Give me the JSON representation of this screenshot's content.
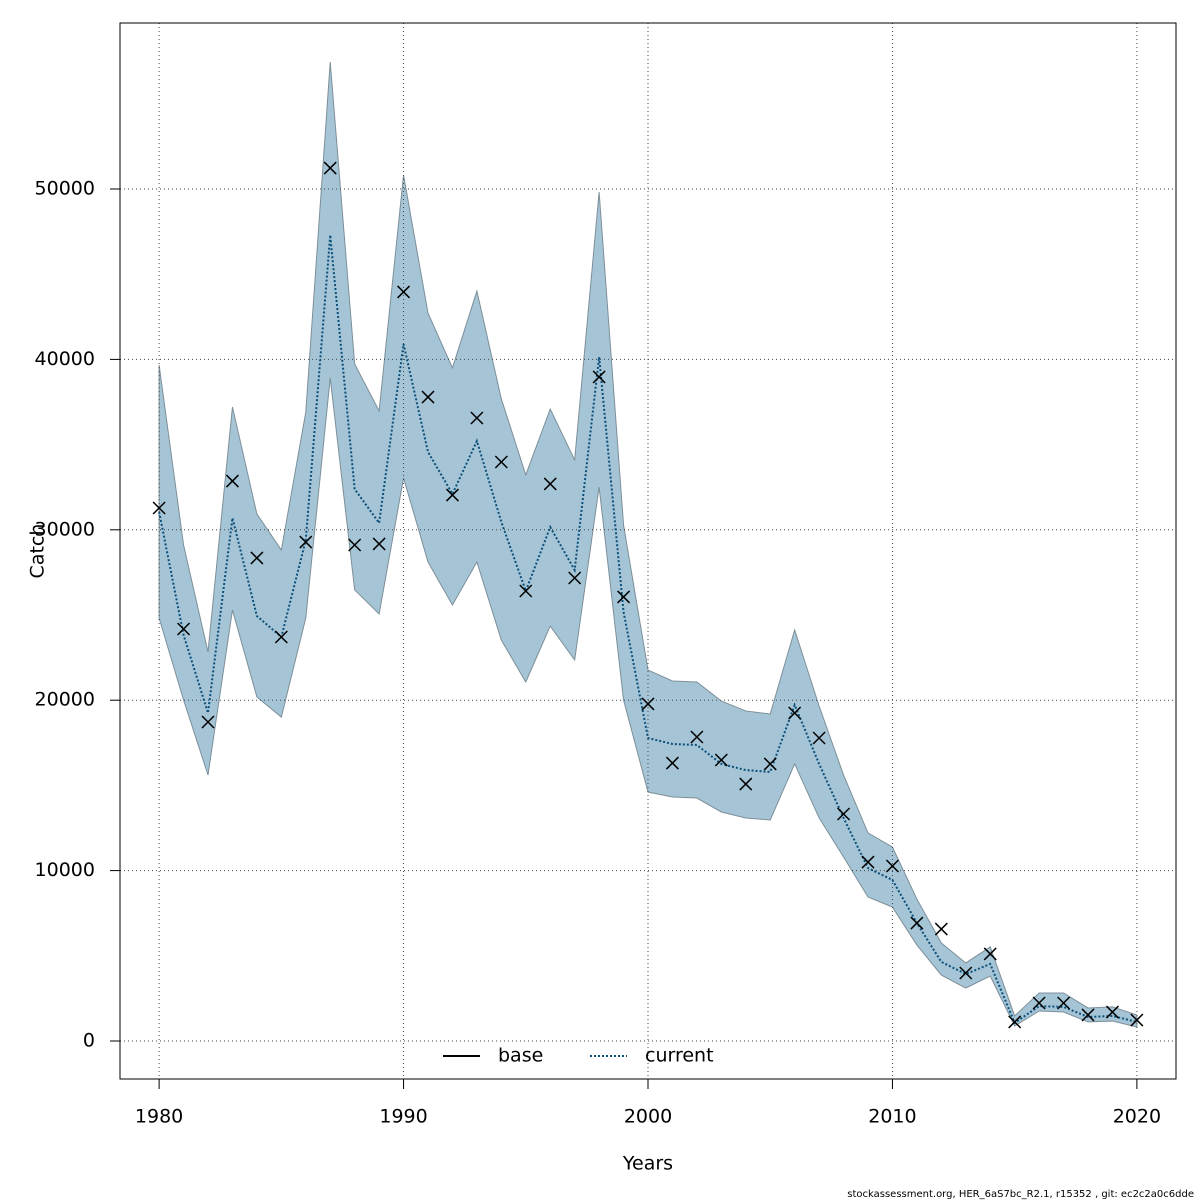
{
  "chart_data": {
    "type": "line",
    "xlabel": "Years",
    "ylabel": "Catch",
    "footnote": "stockassessment.org, HER_6aS7bc_R2.1, r15352 , git: ec2c2a0c6dde",
    "x": [
      1980,
      1981,
      1982,
      1983,
      1984,
      1985,
      1986,
      1987,
      1988,
      1989,
      1990,
      1991,
      1992,
      1993,
      1994,
      1995,
      1996,
      1997,
      1998,
      1999,
      2000,
      2001,
      2002,
      2003,
      2004,
      2005,
      2006,
      2007,
      2008,
      2009,
      2010,
      2011,
      2012,
      2013,
      2014,
      2015,
      2016,
      2017,
      2018,
      2019,
      2020
    ],
    "series": [
      {
        "name": "base",
        "color": "#000000"
      },
      {
        "name": "current",
        "color": "#0b4f7a",
        "values": [
          31040,
          23830,
          19250,
          30690,
          24940,
          23710,
          29400,
          47300,
          32390,
          30400,
          40900,
          34570,
          32100,
          35210,
          30460,
          26410,
          30160,
          27640,
          40140,
          25180,
          17780,
          17430,
          17370,
          16260,
          15900,
          15790,
          19720,
          16260,
          13090,
          10150,
          9450,
          6920,
          4640,
          3930,
          4520,
          1060,
          2050,
          2000,
          1410,
          1470,
          1120
        ]
      }
    ],
    "band": {
      "color": "#a5c5d6",
      "upper": [
        39670,
        29110,
        22830,
        37210,
        30930,
        28810,
        36910,
        57450,
        39730,
        36970,
        50820,
        42720,
        39500,
        44010,
        37680,
        33220,
        37090,
        34100,
        49820,
        30280,
        21770,
        21130,
        21070,
        19950,
        19370,
        19190,
        24120,
        19660,
        15610,
        12210,
        11380,
        8330,
        5750,
        4580,
        5520,
        1470,
        2820,
        2820,
        1940,
        2000,
        1530
      ],
      "lower": [
        24820,
        20010,
        15610,
        25290,
        20190,
        19010,
        24820,
        38910,
        26470,
        25060,
        33040,
        28110,
        25590,
        28110,
        23530,
        21070,
        24350,
        22360,
        32510,
        20010,
        14610,
        14320,
        14260,
        13440,
        13090,
        12970,
        16260,
        13090,
        10800,
        8450,
        7860,
        5630,
        3870,
        3110,
        3810,
        880,
        1760,
        1700,
        1120,
        1170,
        820
      ]
    },
    "observed": [
      31280,
      24180,
      18720,
      32860,
      28350,
      23710,
      29280,
      51230,
      29110,
      29170,
      43960,
      37790,
      32040,
      36560,
      33980,
      26410,
      32690,
      27170,
      38970,
      26060,
      19780,
      16310,
      17840,
      16490,
      15080,
      16260,
      19250,
      17780,
      13320,
      10500,
      10270,
      6920,
      6570,
      3990,
      5110,
      1120,
      2230,
      2230,
      1530,
      1700,
      1230
    ],
    "xlim": [
      1978.4,
      2021.6
    ],
    "xticks": [
      1980,
      1990,
      2000,
      2010,
      2020
    ],
    "ylim": [
      -2230,
      59742
    ],
    "yticks": [
      0,
      10000,
      20000,
      30000,
      40000,
      50000
    ],
    "grid": true,
    "legend": "bottom"
  }
}
